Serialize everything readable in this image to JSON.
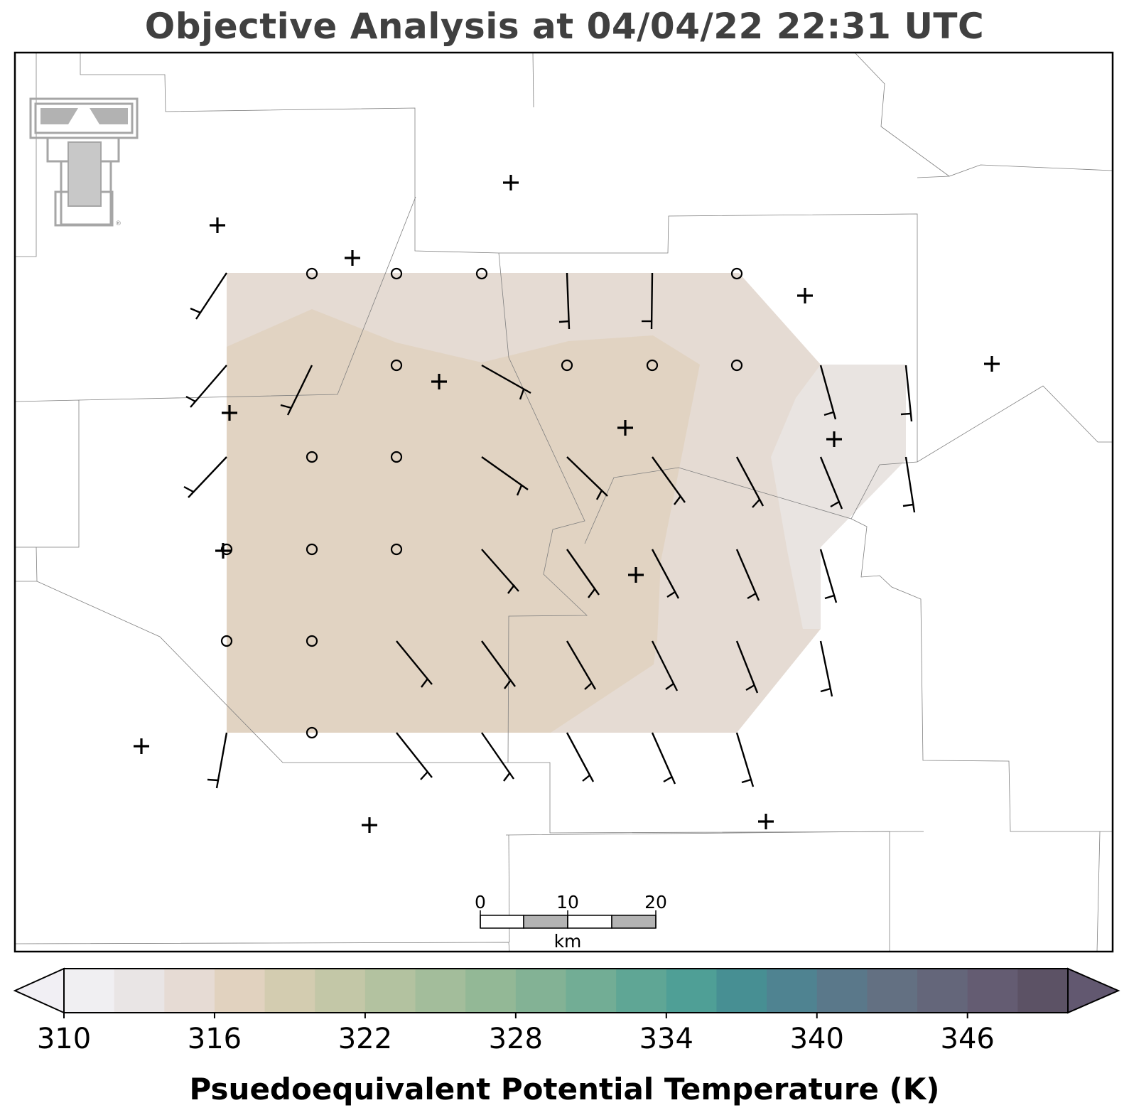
{
  "title": "Objective Analysis at 04/04/22 22:31 UTC",
  "logo": {
    "name": "texas-tech-double-t-logo",
    "text": "TT",
    "mark": "®",
    "color": "#a6a6a6"
  },
  "scale_bar": {
    "ticks": [
      "0",
      "10",
      "20"
    ],
    "unit": "km"
  },
  "colorbar": {
    "label": "Psuedoequivalent Potential Temperature (K)",
    "min": 310,
    "max": 350,
    "step": 2,
    "ticks": [
      "310",
      "316",
      "322",
      "328",
      "334",
      "340",
      "346"
    ],
    "colors": [
      "#f0eff2",
      "#e9e5e5",
      "#e6dbd4",
      "#e1d2bf",
      "#d3ccb0",
      "#c3c7a7",
      "#b3c2a0",
      "#a3bd9b",
      "#93b896",
      "#83b295",
      "#72ad95",
      "#5fa695",
      "#4f9f96",
      "#478f93",
      "#4f8391",
      "#5a788a",
      "#637082",
      "#64667a",
      "#645c72",
      "#5c5265"
    ],
    "extend": "both",
    "under_color": "#f1eff4",
    "over_color": "#625870"
  },
  "wind_unit_note": "barbs",
  "stations_plus": [
    "s1",
    "s2",
    "s3",
    "s4",
    "s5",
    "s6",
    "s7",
    "s8",
    "s9",
    "s10",
    "s11",
    "s12",
    "s13",
    "s14",
    "s15"
  ],
  "field_levels": {
    "outer_color": "#e5dbd3",
    "inner_color": "#e1d3c2",
    "east_color": "#e9e4e1"
  }
}
